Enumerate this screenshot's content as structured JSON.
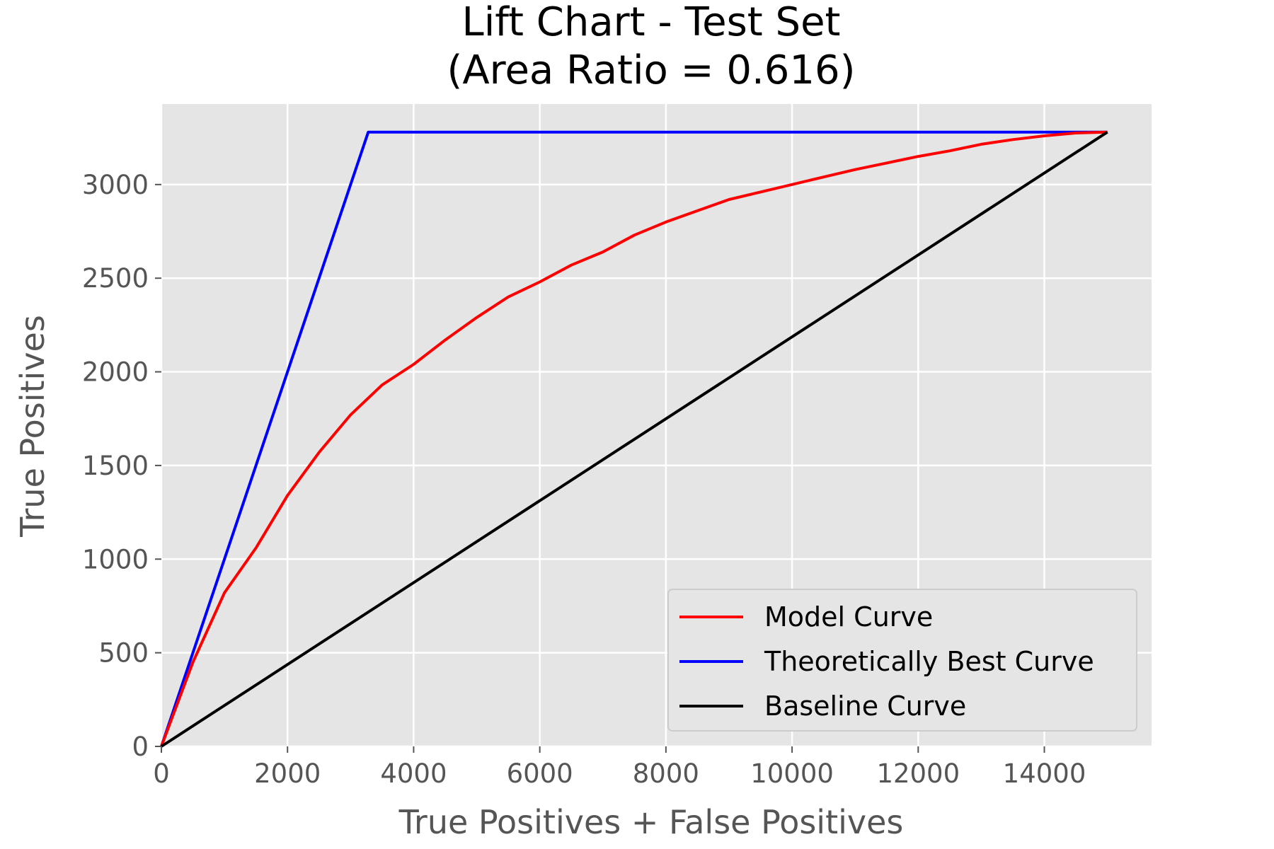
{
  "chart_data": {
    "type": "line",
    "title": "Lift Chart - Test Set",
    "subtitle": "(Area Ratio = 0.616)",
    "xlabel": "True Positives + False Positives",
    "ylabel": "True Positives",
    "xlim": [
      0,
      15700
    ],
    "ylim": [
      0,
      3430
    ],
    "xticks": [
      0,
      2000,
      4000,
      6000,
      8000,
      10000,
      12000,
      14000
    ],
    "yticks": [
      0,
      500,
      1000,
      1500,
      2000,
      2500,
      3000
    ],
    "xtick_labels": [
      "0",
      "2000",
      "4000",
      "6000",
      "8000",
      "10000",
      "12000",
      "14000"
    ],
    "ytick_labels": [
      "0",
      "500",
      "1000",
      "1500",
      "2000",
      "2500",
      "3000"
    ],
    "grid": true,
    "legend_position": "lower-right",
    "background": "#e5e5e5",
    "series": [
      {
        "name": "Model Curve",
        "color": "#ff0000",
        "x": [
          0,
          200,
          500,
          1000,
          1500,
          2000,
          2500,
          3000,
          3500,
          4000,
          4500,
          5000,
          5500,
          6000,
          6500,
          7000,
          7500,
          8000,
          8500,
          9000,
          9500,
          10000,
          10500,
          11000,
          11500,
          12000,
          12500,
          13000,
          13500,
          14000,
          14500,
          15000
        ],
        "y": [
          0,
          180,
          450,
          820,
          1060,
          1340,
          1570,
          1770,
          1930,
          2040,
          2170,
          2290,
          2400,
          2480,
          2570,
          2640,
          2730,
          2800,
          2860,
          2920,
          2960,
          3000,
          3040,
          3080,
          3115,
          3150,
          3180,
          3215,
          3240,
          3260,
          3275,
          3280
        ]
      },
      {
        "name": "Theoretically Best Curve",
        "color": "#0000ff",
        "x": [
          0,
          3280,
          15000
        ],
        "y": [
          0,
          3280,
          3280
        ]
      },
      {
        "name": "Baseline Curve",
        "color": "#000000",
        "x": [
          0,
          15000
        ],
        "y": [
          0,
          3280
        ]
      }
    ]
  }
}
